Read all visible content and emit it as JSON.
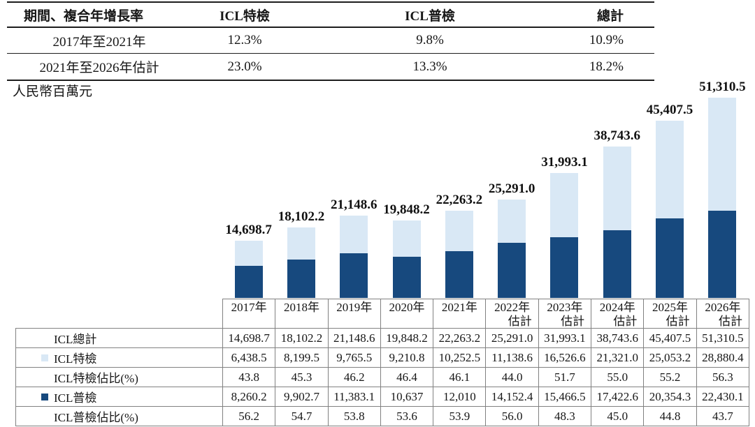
{
  "colors": {
    "dark_blue": "#17497E",
    "light_blue": "#D9E8F5",
    "table_border_gray": "#818181",
    "line_black": "#1C1C1C"
  },
  "summary_table": {
    "headers": [
      "期間、複合年增長率",
      "ICL特檢",
      "ICL普檢",
      "總計"
    ],
    "rows": [
      {
        "period": "2017年至2021年",
        "special": "12.3%",
        "general": "9.8%",
        "total": "10.9%"
      },
      {
        "period": "2021年至2026年估計",
        "special": "23.0%",
        "general": "13.3%",
        "total": "18.2%"
      }
    ]
  },
  "unit_label": "人民幣百萬元",
  "chart_data": {
    "type": "bar",
    "stacked": true,
    "title": "",
    "xlabel": "",
    "ylabel": "人民幣百萬元",
    "ylim": [
      0,
      51310.5
    ],
    "grid": false,
    "legend_position": "in-table-below",
    "categories": [
      "2017年",
      "2018年",
      "2019年",
      "2020年",
      "2021年",
      "2022年估計",
      "2023年估計",
      "2024年估計",
      "2025年估計",
      "2026年估計"
    ],
    "series": [
      {
        "name": "ICL普檢",
        "color": "#17497E",
        "position": "bottom",
        "values": [
          8260.2,
          9902.7,
          11383.1,
          10637,
          12010,
          14152.4,
          15466.5,
          17422.6,
          20354.3,
          22430.1
        ]
      },
      {
        "name": "ICL特檢",
        "color": "#D9E8F5",
        "position": "top",
        "values": [
          6438.5,
          8199.5,
          9765.5,
          9210.8,
          10252.5,
          11138.6,
          16526.6,
          21321.0,
          25053.2,
          28880.4
        ]
      }
    ],
    "totals": [
      14698.7,
      18102.2,
      21148.6,
      19848.2,
      22263.2,
      25291.0,
      31993.1,
      38743.6,
      45407.5,
      51310.5
    ],
    "total_labels": [
      "14,698.7",
      "18,102.2",
      "21,148.6",
      "19,848.2",
      "22,263.2",
      "25,291.0",
      "31,993.1",
      "38,743.6",
      "45,407.5",
      "51,310.5"
    ]
  },
  "bottom_table": {
    "year_headers": [
      {
        "line1": "2017年",
        "line2": ""
      },
      {
        "line1": "2018年",
        "line2": ""
      },
      {
        "line1": "2019年",
        "line2": ""
      },
      {
        "line1": "2020年",
        "line2": ""
      },
      {
        "line1": "2021年",
        "line2": ""
      },
      {
        "line1": "2022年",
        "line2": "估計"
      },
      {
        "line1": "2023年",
        "line2": "估計"
      },
      {
        "line1": "2024年",
        "line2": "估計"
      },
      {
        "line1": "2025年",
        "line2": "估計"
      },
      {
        "line1": "2026年",
        "line2": "估計"
      }
    ],
    "rows": [
      {
        "label": "ICL總計",
        "legend": "",
        "values": [
          "14,698.7",
          "18,102.2",
          "21,148.6",
          "19,848.2",
          "22,263.2",
          "25,291.0",
          "31,993.1",
          "38,743.6",
          "45,407.5",
          "51,310.5"
        ]
      },
      {
        "label": "ICL特檢",
        "legend": "#D9E8F5",
        "values": [
          "6,438.5",
          "8,199.5",
          "9,765.5",
          "9,210.8",
          "10,252.5",
          "11,138.6",
          "16,526.6",
          "21,321.0",
          "25,053.2",
          "28,880.4"
        ]
      },
      {
        "label": "ICL特檢佔比(%)",
        "legend": "",
        "values": [
          "43.8",
          "45.3",
          "46.2",
          "46.4",
          "46.1",
          "44.0",
          "51.7",
          "55.0",
          "55.2",
          "56.3"
        ]
      },
      {
        "label": "ICL普檢",
        "legend": "#17497E",
        "values": [
          "8,260.2",
          "9,902.7",
          "11,383.1",
          "10,637",
          "12,010",
          "14,152.4",
          "15,466.5",
          "17,422.6",
          "20,354.3",
          "22,430.1"
        ]
      },
      {
        "label": "ICL普檢佔比(%)",
        "legend": "",
        "values": [
          "56.2",
          "54.7",
          "53.8",
          "53.6",
          "53.9",
          "56.0",
          "48.3",
          "45.0",
          "44.8",
          "43.7"
        ]
      }
    ]
  }
}
